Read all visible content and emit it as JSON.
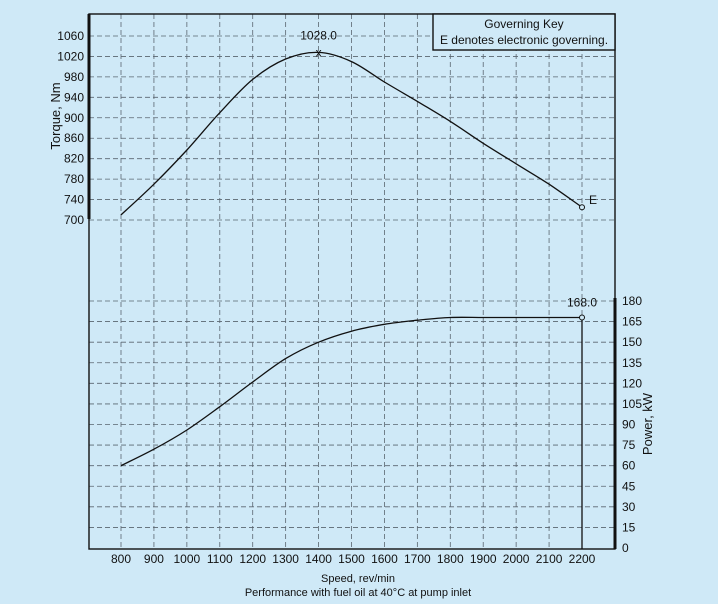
{
  "chart_data": {
    "type": "line",
    "legend": {
      "title": "Governing Key",
      "text": "E denotes electronic governing.",
      "placement": "top-right"
    },
    "xlabel": "Speed, rev/min",
    "caption": "Performance with fuel oil at 40°C at pump inlet",
    "x_ticks": [
      "800",
      "900",
      "1000",
      "1100",
      "1200",
      "1300",
      "1400",
      "1500",
      "1600",
      "1700",
      "1800",
      "1900",
      "2000",
      "2100",
      "2200"
    ],
    "xlim": [
      700,
      2300
    ],
    "grid": true,
    "torque": {
      "ylabel": "Torque, Nm",
      "y_ticks": [
        "700",
        "740",
        "780",
        "820",
        "860",
        "900",
        "940",
        "980",
        "1020",
        "1060"
      ],
      "ylim": [
        700,
        1060
      ],
      "x": [
        800,
        900,
        1000,
        1100,
        1200,
        1300,
        1400,
        1500,
        1600,
        1700,
        1800,
        1900,
        2000,
        2100,
        2200
      ],
      "y": [
        710,
        770,
        837,
        910,
        975,
        1015,
        1028,
        1010,
        970,
        932,
        893,
        850,
        810,
        770,
        725
      ],
      "peak_label": "1028.0",
      "end_label": "E"
    },
    "power": {
      "ylabel": "Power, kW",
      "y_ticks": [
        "0",
        "15",
        "30",
        "45",
        "60",
        "75",
        "90",
        "105",
        "120",
        "135",
        "150",
        "165",
        "180"
      ],
      "ylim": [
        0,
        180
      ],
      "x": [
        800,
        900,
        1000,
        1100,
        1200,
        1300,
        1400,
        1500,
        1600,
        1700,
        1800,
        1900,
        2000,
        2100,
        2200
      ],
      "y": [
        60,
        72,
        86,
        103,
        121,
        138,
        150,
        158,
        163,
        166,
        168,
        168,
        168,
        168,
        168
      ],
      "end_label": "168.0"
    }
  }
}
